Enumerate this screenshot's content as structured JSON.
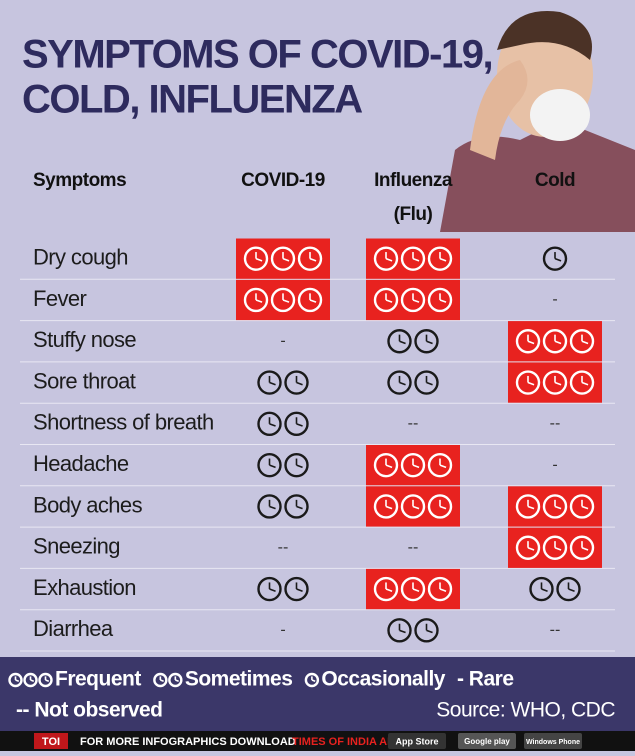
{
  "header": {
    "title": [
      "SYMPTOMS OF COVID-19,",
      "COLD, INFLUENZA"
    ]
  },
  "table": {
    "columns": [
      "Symptoms",
      "COVID-19",
      "Influenza",
      "Cold"
    ],
    "column_note": {
      "column": 2,
      "text": "(Flu)"
    },
    "rows": [
      [
        "Dry cough",
        3,
        3,
        1
      ],
      [
        "Fever",
        3,
        3,
        "-"
      ],
      [
        "Stuffy nose",
        "-",
        2,
        3
      ],
      [
        "Sore throat",
        2,
        2,
        3
      ],
      [
        "Shortness of breath",
        2,
        "--",
        "--"
      ],
      [
        "Headache",
        2,
        3,
        "-"
      ],
      [
        "Body aches",
        2,
        3,
        3
      ],
      [
        "Sneezing",
        "--",
        "--",
        3
      ],
      [
        "Exhaustion",
        2,
        3,
        2
      ],
      [
        "Diarrhea",
        "-",
        2,
        "--"
      ]
    ]
  },
  "legend": [
    {
      "clocks": 3,
      "label": "Frequent"
    },
    {
      "clocks": 2,
      "label": "Sometimes"
    },
    {
      "clocks": 1,
      "label": "Occasionally"
    },
    {
      "label": "- Rare"
    },
    {
      "label": "-- Not observed"
    }
  ],
  "source": "Source: WHO, CDC",
  "footer": {
    "logo": "TOI",
    "text": "FOR MORE INFOGRAPHICS DOWNLOAD",
    "app": "TIMES OF INDIA APP",
    "stores": [
      "App Store",
      "Google play",
      "Windows Phone"
    ]
  }
}
